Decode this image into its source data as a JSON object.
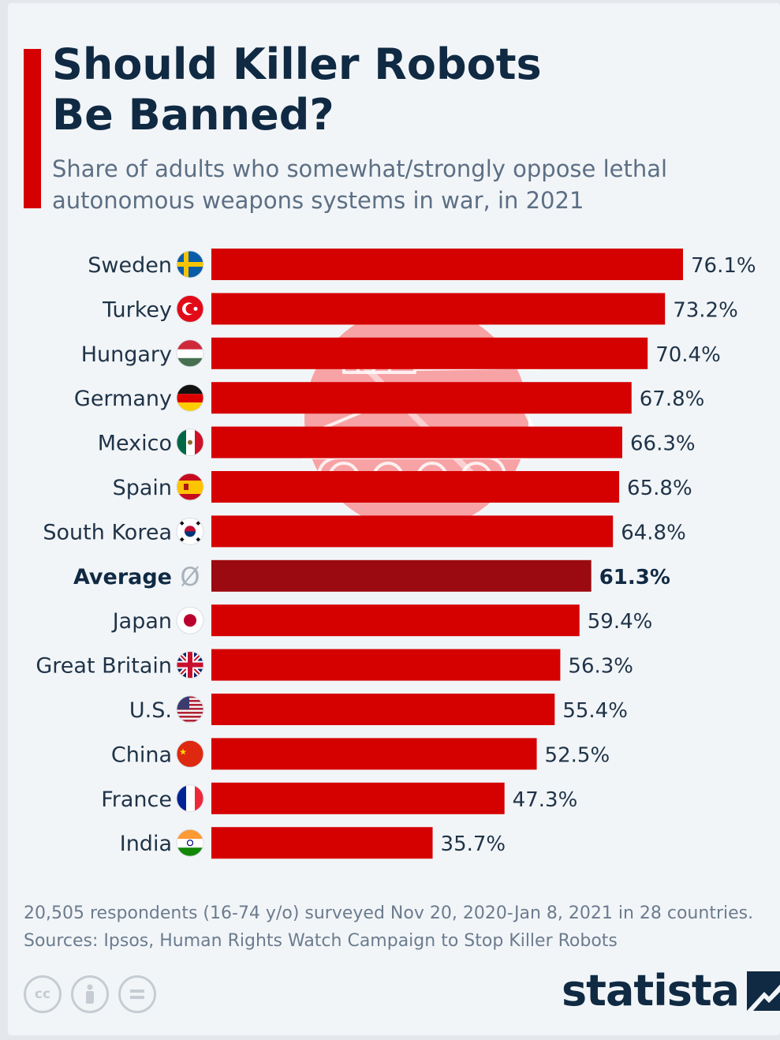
{
  "header": {
    "title": "Should Killer Robots\nBe Banned?",
    "subtitle": "Share of adults who somewhat/strongly oppose lethal autonomous weapons systems in war, in 2021"
  },
  "chart_data": {
    "type": "bar",
    "orientation": "horizontal",
    "unit": "%",
    "categories": [
      "Sweden",
      "Turkey",
      "Hungary",
      "Germany",
      "Mexico",
      "Spain",
      "South Korea",
      "Average",
      "Japan",
      "Great Britain",
      "U.S.",
      "China",
      "France",
      "India"
    ],
    "values": [
      76.1,
      73.2,
      70.4,
      67.8,
      66.3,
      65.8,
      64.8,
      61.3,
      59.4,
      56.3,
      55.4,
      52.5,
      47.3,
      35.7
    ],
    "value_labels": [
      "76.1%",
      "73.2%",
      "70.4%",
      "67.8%",
      "66.3%",
      "65.8%",
      "64.8%",
      "61.3%",
      "59.4%",
      "56.3%",
      "55.4%",
      "52.5%",
      "47.3%",
      "35.7%"
    ],
    "highlight_category": "Average",
    "category_icons": [
      "sweden-flag-icon",
      "turkey-flag-icon",
      "hungary-flag-icon",
      "germany-flag-icon",
      "mexico-flag-icon",
      "spain-flag-icon",
      "south-korea-flag-icon",
      "average-symbol-icon",
      "japan-flag-icon",
      "great-britain-flag-icon",
      "us-flag-icon",
      "china-flag-icon",
      "france-flag-icon",
      "india-flag-icon"
    ],
    "average_symbol": "Ø",
    "xlim": [
      0,
      76.1
    ],
    "grid": false,
    "colors": {
      "bar": "#d50000",
      "highlight_bar": "#9b0a10"
    }
  },
  "background_icon": "crossed-out-tank-icon",
  "footer": {
    "note": "20,505 respondents (16-74 y/o) surveyed Nov 20, 2020-Jan 8, 2021 in 28 countries.",
    "sources": "Sources: Ipsos, Human Rights Watch Campaign to Stop Killer Robots",
    "license_icons": [
      "cc-icon",
      "attribution-icon",
      "no-derivatives-icon"
    ],
    "brand": "statista"
  },
  "colors": {
    "accent": "#d50000",
    "title": "#102a43",
    "subtitle": "#5c6f84",
    "footnote": "#6b7c8e"
  }
}
